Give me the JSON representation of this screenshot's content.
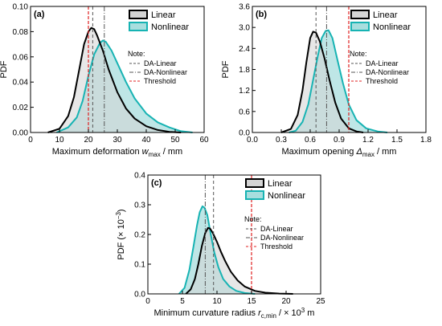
{
  "colors": {
    "linear_line": "#000000",
    "linear_fill": "#d4d4d4",
    "nonlinear_line": "#17b3b3",
    "nonlinear_fill": "#a8dede",
    "threshold": "#e02020",
    "da_line": "#555555",
    "axis": "#000000"
  },
  "legend": {
    "linear": "Linear",
    "nonlinear": "Nonlinear"
  },
  "note": {
    "title": "Note:",
    "da_linear": "DA-Linear",
    "da_nonlinear": "DA-Nonlinear",
    "threshold": "Threshold"
  },
  "chart_data": [
    {
      "type": "area",
      "panel": "(a)",
      "ylabel": "PDF",
      "xlabel_main": "Maximum deformation ",
      "xlabel_var": "w",
      "xlabel_sub": "max",
      "xlabel_unit": " / mm",
      "xlim": [
        0,
        60
      ],
      "ylim": [
        0,
        0.1
      ],
      "xticks": [
        "0",
        "10",
        "20",
        "30",
        "40",
        "50",
        "60"
      ],
      "yticks": [
        "0.00",
        "0.02",
        "0.04",
        "0.06",
        "0.08",
        "0.10"
      ],
      "legend_position": "top-right",
      "note_position": "right",
      "reference_lines": {
        "da_linear": 21.5,
        "da_nonlinear": 25.5,
        "threshold": 20
      },
      "series": [
        {
          "name": "Linear",
          "x": [
            6,
            10,
            13,
            15,
            17,
            18.5,
            20,
            21,
            22,
            23,
            25,
            27,
            30,
            33,
            36,
            40,
            44,
            48,
            52
          ],
          "y": [
            0,
            0.003,
            0.013,
            0.028,
            0.052,
            0.07,
            0.08,
            0.083,
            0.082,
            0.077,
            0.065,
            0.05,
            0.032,
            0.019,
            0.011,
            0.005,
            0.002,
            0.0005,
            0
          ]
        },
        {
          "name": "Nonlinear",
          "x": [
            9,
            13,
            16,
            18,
            20,
            22,
            24,
            25,
            26,
            28,
            30,
            33,
            36,
            40,
            44,
            48,
            52,
            56
          ],
          "y": [
            0,
            0.004,
            0.012,
            0.025,
            0.045,
            0.062,
            0.071,
            0.073,
            0.072,
            0.065,
            0.055,
            0.04,
            0.027,
            0.015,
            0.008,
            0.004,
            0.001,
            0
          ]
        }
      ]
    },
    {
      "type": "area",
      "panel": "(b)",
      "ylabel": "PDF",
      "xlabel_main": "Maximum opening ",
      "xlabel_var": "Δ",
      "xlabel_sub": "max",
      "xlabel_unit": " / mm",
      "xlim": [
        0,
        1.8
      ],
      "ylim": [
        0,
        3.6
      ],
      "xticks": [
        "0.0",
        "0.3",
        "0.6",
        "0.9",
        "1.2",
        "1.5",
        "1.8"
      ],
      "yticks": [
        "0.0",
        "0.6",
        "1.2",
        "1.8",
        "2.4",
        "3.0",
        "3.6"
      ],
      "legend_position": "top-right",
      "note_position": "right",
      "reference_lines": {
        "da_linear": 0.66,
        "da_nonlinear": 0.77,
        "threshold": 1.0
      },
      "series": [
        {
          "name": "Linear",
          "x": [
            0.3,
            0.4,
            0.47,
            0.52,
            0.56,
            0.6,
            0.63,
            0.66,
            0.7,
            0.75,
            0.8,
            0.86,
            0.92,
            1.0,
            1.08,
            1.15
          ],
          "y": [
            0,
            0.1,
            0.5,
            1.2,
            2.0,
            2.7,
            2.88,
            2.85,
            2.6,
            2.1,
            1.5,
            0.85,
            0.4,
            0.12,
            0.03,
            0
          ]
        },
        {
          "name": "Nonlinear",
          "x": [
            0.38,
            0.45,
            0.52,
            0.58,
            0.63,
            0.68,
            0.72,
            0.76,
            0.79,
            0.83,
            0.88,
            0.94,
            1.0,
            1.08,
            1.18,
            1.3,
            1.4
          ],
          "y": [
            0,
            0.05,
            0.3,
            0.8,
            1.5,
            2.2,
            2.7,
            2.9,
            2.92,
            2.7,
            2.1,
            1.4,
            0.8,
            0.35,
            0.12,
            0.03,
            0
          ]
        }
      ]
    },
    {
      "type": "area",
      "panel": "(c)",
      "ylabel": "PDF  (× 10",
      "ylabel_sup": "−3",
      "ylabel_end": ")",
      "xlabel_main": "Minimum curvature radius ",
      "xlabel_var": "r",
      "xlabel_sub": "c,min",
      "xlabel_unit": " / × 10",
      "xlabel_sup": "3",
      "xlabel_end": " m",
      "xlim": [
        0,
        25
      ],
      "ylim": [
        0,
        0.4
      ],
      "xticks": [
        "0",
        "5",
        "10",
        "15",
        "20",
        "25"
      ],
      "yticks": [
        "0.0",
        "0.1",
        "0.2",
        "0.3",
        "0.4"
      ],
      "legend_position": "top-right",
      "note_position": "right",
      "reference_lines": {
        "da_linear": 9.5,
        "da_nonlinear": 8.3,
        "threshold": 15
      },
      "series": [
        {
          "name": "Linear",
          "x": [
            5.5,
            6.2,
            6.8,
            7.3,
            7.8,
            8.3,
            8.7,
            9.0,
            9.4,
            10.0,
            10.6,
            11.2,
            12.0,
            13.0,
            14.0,
            15.5,
            17.0,
            19.0,
            21.0
          ],
          "y": [
            0,
            0.015,
            0.05,
            0.1,
            0.16,
            0.205,
            0.222,
            0.22,
            0.205,
            0.175,
            0.14,
            0.11,
            0.075,
            0.045,
            0.025,
            0.01,
            0.004,
            0.001,
            0
          ]
        },
        {
          "name": "Nonlinear",
          "x": [
            4.5,
            5.3,
            6.0,
            6.6,
            7.1,
            7.5,
            7.9,
            8.2,
            8.6,
            9.1,
            9.6,
            10.2,
            10.9,
            11.8,
            12.8,
            14.0,
            15.5
          ],
          "y": [
            0,
            0.02,
            0.08,
            0.16,
            0.23,
            0.275,
            0.295,
            0.29,
            0.265,
            0.2,
            0.14,
            0.09,
            0.05,
            0.025,
            0.01,
            0.003,
            0
          ]
        }
      ]
    }
  ]
}
